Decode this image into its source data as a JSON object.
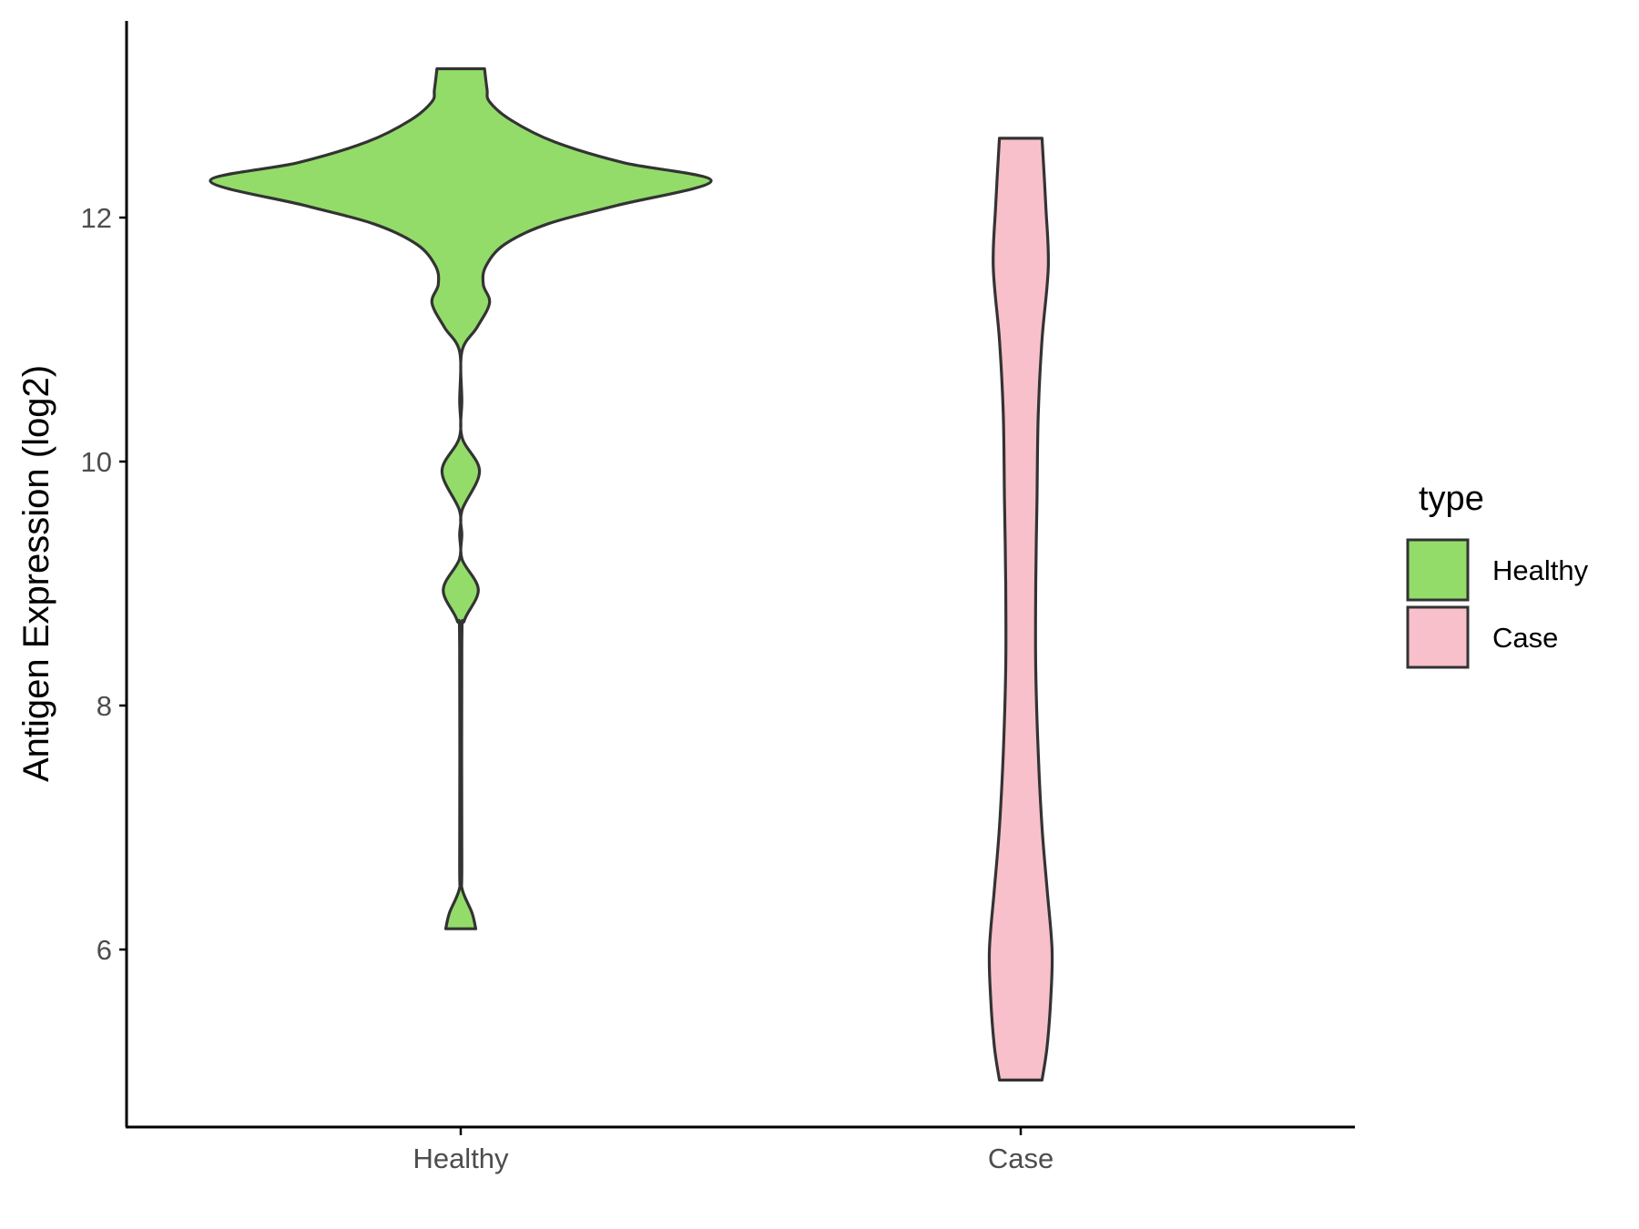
{
  "chart_data": {
    "type": "violin",
    "xlabel": "",
    "ylabel": "Antigen Expression (log2)",
    "categories": [
      "Healthy",
      "Case"
    ],
    "yticks": [
      6,
      8,
      10,
      12
    ],
    "ylim": [
      4.5,
      13.8
    ],
    "grid": false,
    "legend": {
      "title": "type",
      "position": "right",
      "entries": [
        {
          "label": "Healthy",
          "color": "#93DC6A"
        },
        {
          "label": "Case",
          "color": "#F8C0CA"
        }
      ]
    },
    "series": [
      {
        "name": "Healthy",
        "color": "#93DC6A",
        "min": 6.17,
        "max": 13.22,
        "density": [
          [
            6.17,
            0.12
          ],
          [
            6.3,
            0.09
          ],
          [
            6.5,
            0.01
          ],
          [
            6.7,
            0.0
          ],
          [
            8.5,
            0.0
          ],
          [
            8.7,
            0.03
          ],
          [
            8.95,
            0.14
          ],
          [
            9.2,
            0.01
          ],
          [
            9.4,
            0.0
          ],
          [
            9.6,
            0.01
          ],
          [
            9.92,
            0.15
          ],
          [
            10.2,
            0.01
          ],
          [
            10.5,
            0.0
          ],
          [
            10.9,
            0.0
          ],
          [
            11.1,
            0.13
          ],
          [
            11.3,
            0.23
          ],
          [
            11.45,
            0.18
          ],
          [
            11.6,
            0.2
          ],
          [
            11.78,
            0.35
          ],
          [
            11.95,
            0.7
          ],
          [
            12.1,
            1.25
          ],
          [
            12.3,
            2.0
          ],
          [
            12.45,
            1.3
          ],
          [
            12.62,
            0.75
          ],
          [
            12.8,
            0.4
          ],
          [
            12.95,
            0.23
          ],
          [
            13.05,
            0.21
          ],
          [
            13.22,
            0.19
          ]
        ]
      },
      {
        "name": "Case",
        "color": "#F8C0CA",
        "min": 4.93,
        "max": 12.65,
        "density": [
          [
            4.93,
            0.17
          ],
          [
            5.2,
            0.21
          ],
          [
            5.6,
            0.24
          ],
          [
            6.0,
            0.25
          ],
          [
            6.5,
            0.21
          ],
          [
            7.0,
            0.17
          ],
          [
            7.6,
            0.14
          ],
          [
            8.3,
            0.12
          ],
          [
            9.0,
            0.12
          ],
          [
            9.7,
            0.13
          ],
          [
            10.4,
            0.14
          ],
          [
            11.0,
            0.17
          ],
          [
            11.6,
            0.22
          ],
          [
            12.1,
            0.2
          ],
          [
            12.65,
            0.17
          ]
        ]
      }
    ]
  }
}
